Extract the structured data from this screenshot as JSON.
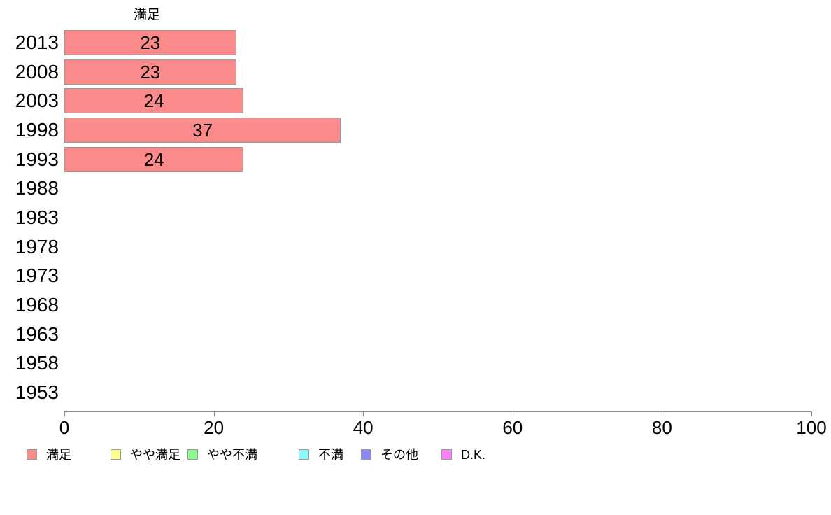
{
  "chart_data": {
    "type": "bar",
    "orientation": "horizontal",
    "title": "満足",
    "categories": [
      "2013",
      "2008",
      "2003",
      "1998",
      "1993",
      "1988",
      "1983",
      "1978",
      "1973",
      "1968",
      "1963",
      "1958",
      "1953"
    ],
    "values": [
      23,
      23,
      24,
      37,
      24,
      null,
      null,
      null,
      null,
      null,
      null,
      null,
      null
    ],
    "bar_labels": [
      "23",
      "23",
      "24",
      "37",
      "24",
      "",
      "",
      "",
      "",
      "",
      "",
      "",
      ""
    ],
    "xlabel": "",
    "ylabel": "",
    "xlim": [
      0,
      100
    ],
    "x_ticks": [
      0,
      20,
      40,
      60,
      80,
      100
    ],
    "grid": false,
    "bar_color": "#FB8B8B",
    "bar_border_color": "#999999",
    "axis_color": "#888888",
    "legend_position": "bottom"
  },
  "legend": {
    "items": [
      {
        "label": "満足",
        "color": "#FB8B8B"
      },
      {
        "label": "やや満足",
        "color": "#FFFF90"
      },
      {
        "label": "やや不満",
        "color": "#8CFA8C"
      },
      {
        "label": "不満",
        "color": "#8AFAFA"
      },
      {
        "label": "その他",
        "color": "#8A8AF2"
      },
      {
        "label": "D.K.",
        "color": "#F980F9"
      }
    ],
    "swatch_border_color": "#999999"
  }
}
